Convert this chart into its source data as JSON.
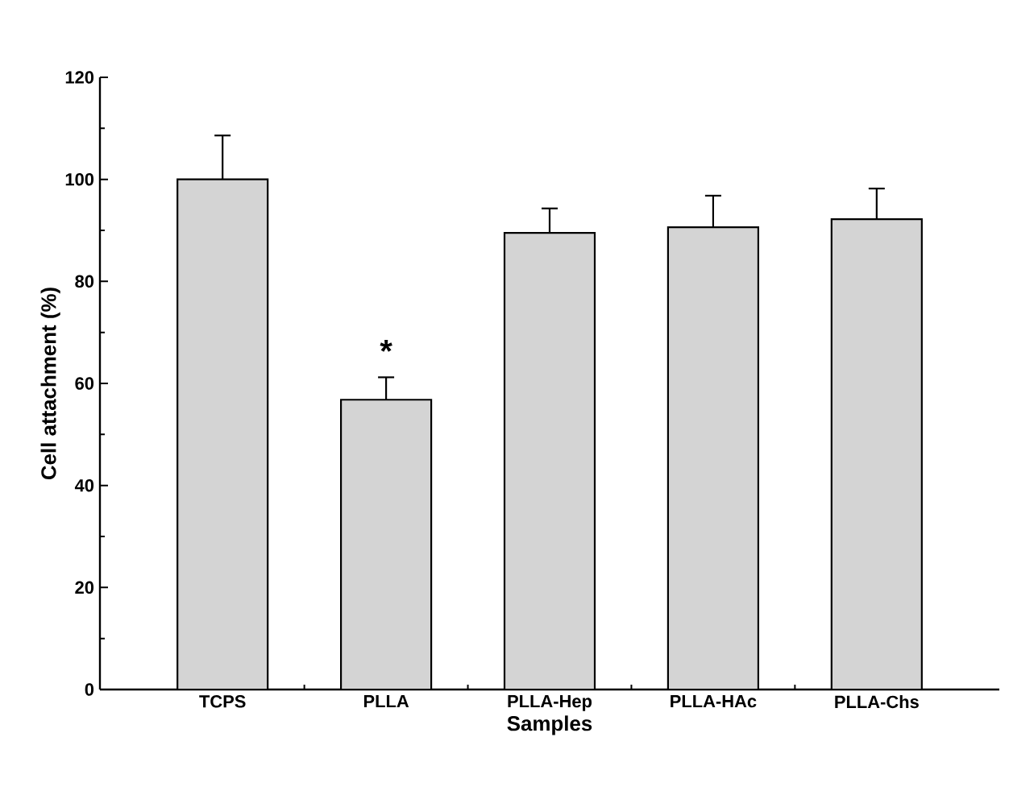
{
  "chart_data": {
    "type": "bar",
    "xlabel": "Samples",
    "ylabel": "Cell attachment (%)",
    "categories": [
      "TCPS",
      "PLLA",
      "PLLA-Hep",
      "PLLA-HAc",
      "PLLA-Chs"
    ],
    "values": [
      100,
      56.8,
      89.5,
      90.6,
      92.2
    ],
    "errors": [
      8.6,
      4.4,
      4.8,
      6.2,
      6.0
    ],
    "color": "#d4d4d4",
    "ylim": [
      0,
      120
    ],
    "yticks": [
      0,
      20,
      40,
      60,
      80,
      100,
      120
    ],
    "annotations": [
      {
        "text": "*",
        "x": "PLLA",
        "y": 61.2
      }
    ]
  }
}
